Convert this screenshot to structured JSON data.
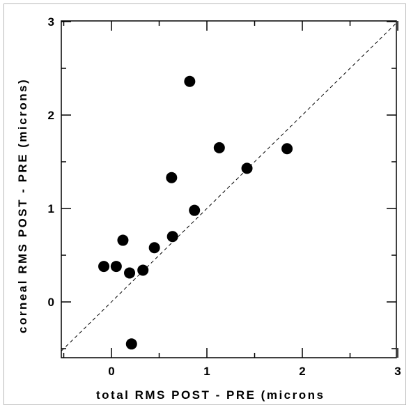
{
  "chart_data": {
    "type": "scatter",
    "title": "",
    "xlabel": "total RMS POST - PRE  (microns",
    "ylabel": "corneal RMS POST - PRE (microns)",
    "xlim": [
      -0.55,
      3
    ],
    "ylim": [
      -0.6,
      3
    ],
    "x_ticks": [
      "0",
      "1",
      "2",
      "3"
    ],
    "y_ticks": [
      "0",
      "1",
      "2",
      "3"
    ],
    "grid": false,
    "reference_line": "y = x (dashed)",
    "points": [
      {
        "x": -0.08,
        "y": 0.38
      },
      {
        "x": 0.05,
        "y": 0.38
      },
      {
        "x": 0.12,
        "y": 0.66
      },
      {
        "x": 0.19,
        "y": 0.31
      },
      {
        "x": 0.33,
        "y": 0.34
      },
      {
        "x": 0.45,
        "y": 0.58
      },
      {
        "x": 0.64,
        "y": 0.7
      },
      {
        "x": 0.63,
        "y": 1.33
      },
      {
        "x": 0.82,
        "y": 2.36
      },
      {
        "x": 0.87,
        "y": 0.98
      },
      {
        "x": 1.13,
        "y": 1.65
      },
      {
        "x": 1.42,
        "y": 1.43
      },
      {
        "x": 1.84,
        "y": 1.64
      },
      {
        "x": 0.21,
        "y": -0.45
      }
    ],
    "marker_color": "#000000"
  }
}
